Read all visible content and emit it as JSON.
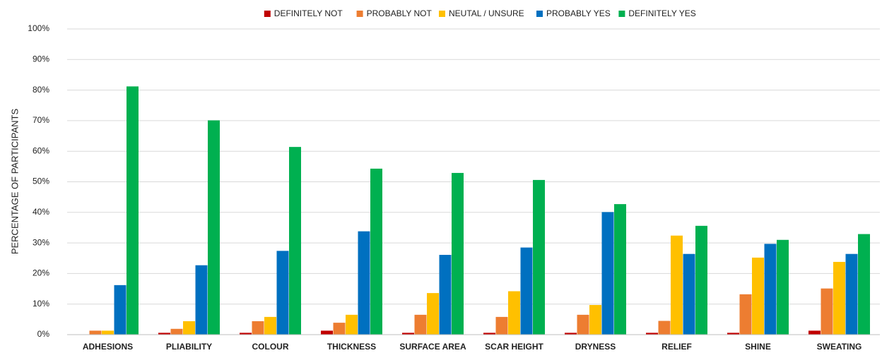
{
  "chart_data": {
    "type": "bar",
    "y_axis_label": "PERCENTAGE OF PARTICIPANTS",
    "categories": [
      "ADHESIONS",
      "PLIABILITY",
      "COLOUR",
      "THICKNESS",
      "SURFACE AREA",
      "SCAR HEIGHT",
      "DRYNESS",
      "RELIEF",
      "SHINE",
      "SWEATING"
    ],
    "series": [
      {
        "name": "DEFINITELY NOT",
        "color": "#c00000",
        "values": [
          0,
          0.6,
          0.6,
          1.3,
          0.6,
          0.6,
          0.6,
          0.6,
          0.6,
          1.3
        ]
      },
      {
        "name": "PROBABLY NOT",
        "color": "#ed7d31",
        "values": [
          1.3,
          1.9,
          4.4,
          3.9,
          6.5,
          5.8,
          6.5,
          4.5,
          13.2,
          15.1
        ]
      },
      {
        "name": "NEUTAL / UNSURE",
        "color": "#ffc000",
        "values": [
          1.3,
          4.4,
          5.8,
          6.5,
          13.6,
          14.2,
          9.7,
          32.4,
          25.2,
          23.8
        ]
      },
      {
        "name": "PROBABLY YES",
        "color": "#0070c0",
        "values": [
          16.2,
          22.7,
          27.4,
          33.8,
          26.1,
          28.5,
          40.1,
          26.4,
          29.7,
          26.4
        ]
      },
      {
        "name": "DEFINITELY YES",
        "color": "#00b050",
        "values": [
          81.2,
          70.1,
          61.4,
          54.3,
          52.9,
          50.6,
          42.7,
          35.6,
          31.0,
          32.9
        ]
      }
    ],
    "ylim": [
      0,
      100
    ],
    "yticks": [
      {
        "value": 0,
        "label": "0%"
      },
      {
        "value": 10,
        "label": "10%"
      },
      {
        "value": 20,
        "label": "20%"
      },
      {
        "value": 30,
        "label": "30%"
      },
      {
        "value": 40,
        "label": "40%"
      },
      {
        "value": 50,
        "label": "50%"
      },
      {
        "value": 60,
        "label": "60%"
      },
      {
        "value": 70,
        "label": "70%"
      },
      {
        "value": 80,
        "label": "80%"
      },
      {
        "value": 90,
        "label": "90%"
      },
      {
        "value": 100,
        "label": "100%"
      }
    ],
    "grid": true,
    "legend": "top"
  }
}
